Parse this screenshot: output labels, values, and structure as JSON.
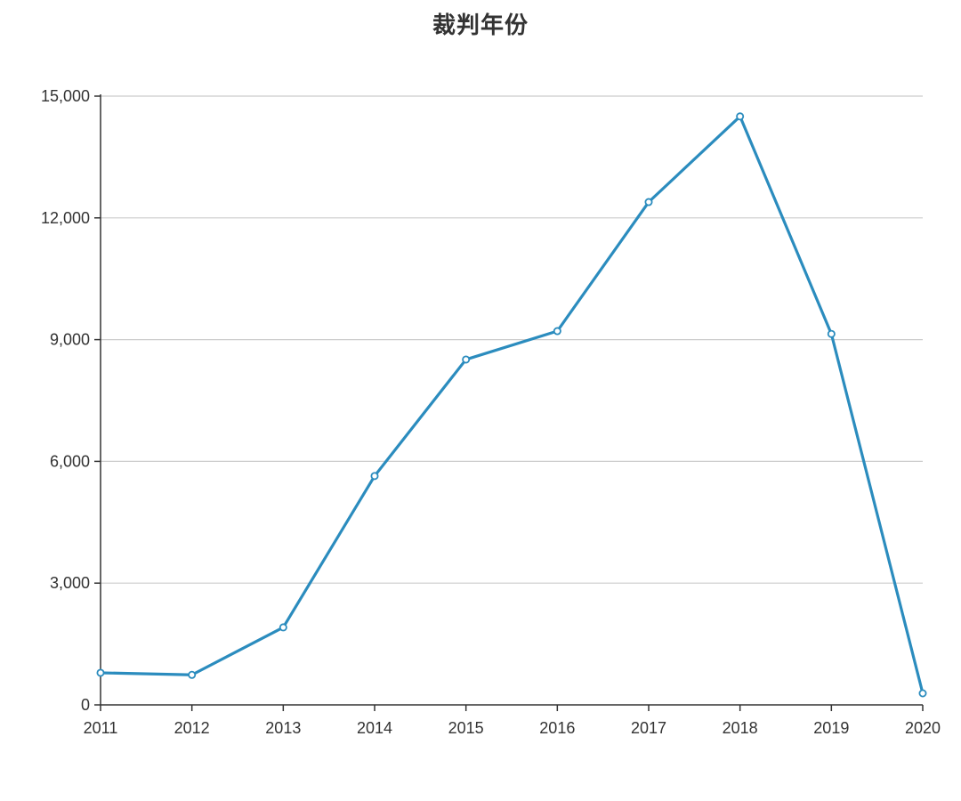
{
  "title": "裁判年份",
  "chart_data": {
    "type": "line",
    "title": "裁判年份",
    "xlabel": "",
    "ylabel": "",
    "categories": [
      "2011",
      "2012",
      "2013",
      "2014",
      "2015",
      "2016",
      "2017",
      "2018",
      "2019",
      "2020"
    ],
    "values": [
      790,
      740,
      1910,
      5640,
      8510,
      9210,
      12390,
      14500,
      9140,
      285
    ],
    "ylim": [
      0,
      15000
    ],
    "yticks": [
      0,
      3000,
      6000,
      9000,
      12000,
      15000
    ],
    "ytick_labels": [
      "0",
      "3,000",
      "6,000",
      "9,000",
      "12,000",
      "15,000"
    ],
    "grid": true,
    "legend": null,
    "line_color": "#2b8cbe",
    "marker": "hollow-circle"
  }
}
